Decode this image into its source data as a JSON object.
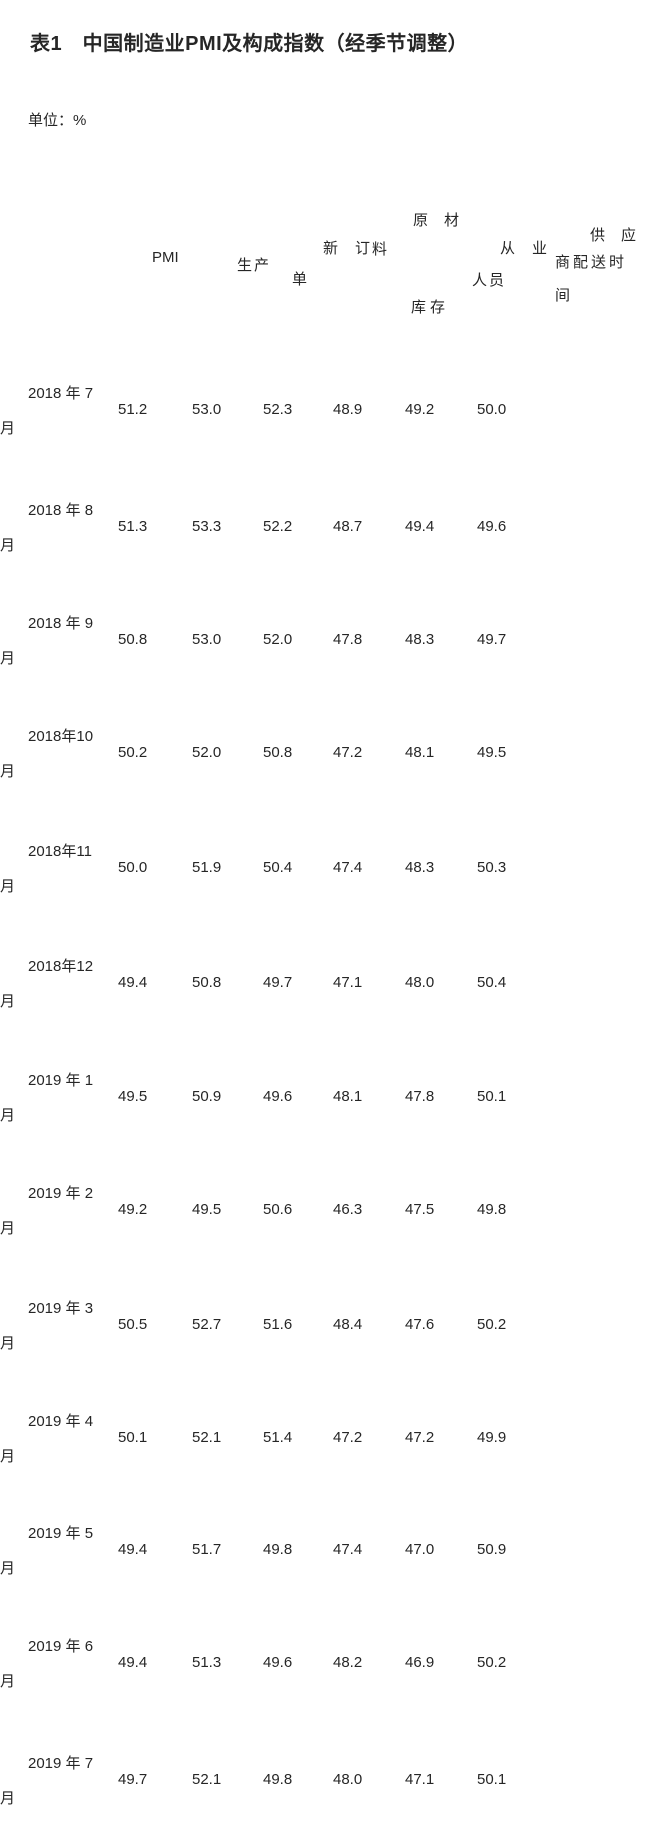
{
  "document": {
    "title": "表1　中国制造业PMI及构成指数（经季节调整）",
    "unit_note": "单位：%"
  },
  "table": {
    "column_names": [
      "PMI",
      "生产",
      "新订单",
      "原材料库存",
      "从业人员",
      "供应商配送时间"
    ],
    "header_runs": [
      "PMI",
      "生产",
      "新订",
      "单",
      "料",
      "原材",
      "库存",
      "从业",
      "人员",
      "供应",
      "商配送时",
      "间"
    ],
    "rows": [
      {
        "month": "2018年7月",
        "label_line1": "2018 年 7",
        "label_line2": "月",
        "values": [
          "51.2",
          "53.0",
          "52.3",
          "48.9",
          "49.2",
          "50.0"
        ]
      },
      {
        "month": "2018年8月",
        "label_line1": "2018 年 8",
        "label_line2": "月",
        "values": [
          "51.3",
          "53.3",
          "52.2",
          "48.7",
          "49.4",
          "49.6"
        ]
      },
      {
        "month": "2018年9月",
        "label_line1": "2018 年 9",
        "label_line2": "月",
        "values": [
          "50.8",
          "53.0",
          "52.0",
          "47.8",
          "48.3",
          "49.7"
        ]
      },
      {
        "month": "2018年10月",
        "label_line1": "2018年10",
        "label_line2": "月",
        "values": [
          "50.2",
          "52.0",
          "50.8",
          "47.2",
          "48.1",
          "49.5"
        ]
      },
      {
        "month": "2018年11月",
        "label_line1": "2018年11",
        "label_line2": "月",
        "values": [
          "50.0",
          "51.9",
          "50.4",
          "47.4",
          "48.3",
          "50.3"
        ]
      },
      {
        "month": "2018年12月",
        "label_line1": "2018年12",
        "label_line2": "月",
        "values": [
          "49.4",
          "50.8",
          "49.7",
          "47.1",
          "48.0",
          "50.4"
        ]
      },
      {
        "month": "2019年1月",
        "label_line1": "2019 年 1",
        "label_line2": "月",
        "values": [
          "49.5",
          "50.9",
          "49.6",
          "48.1",
          "47.8",
          "50.1"
        ]
      },
      {
        "month": "2019年2月",
        "label_line1": "2019 年 2",
        "label_line2": "月",
        "values": [
          "49.2",
          "49.5",
          "50.6",
          "46.3",
          "47.5",
          "49.8"
        ]
      },
      {
        "month": "2019年3月",
        "label_line1": "2019 年 3",
        "label_line2": "月",
        "values": [
          "50.5",
          "52.7",
          "51.6",
          "48.4",
          "47.6",
          "50.2"
        ]
      },
      {
        "month": "2019年4月",
        "label_line1": "2019 年 4",
        "label_line2": "月",
        "values": [
          "50.1",
          "52.1",
          "51.4",
          "47.2",
          "47.2",
          "49.9"
        ]
      },
      {
        "month": "2019年5月",
        "label_line1": "2019 年 5",
        "label_line2": "月",
        "values": [
          "49.4",
          "51.7",
          "49.8",
          "47.4",
          "47.0",
          "50.9"
        ]
      },
      {
        "month": "2019年6月",
        "label_line1": "2019 年 6",
        "label_line2": "月",
        "values": [
          "49.4",
          "51.3",
          "49.6",
          "48.2",
          "46.9",
          "50.2"
        ]
      },
      {
        "month": "2019年7月",
        "label_line1": "2019 年 7",
        "label_line2": "月",
        "values": [
          "49.7",
          "52.1",
          "49.8",
          "48.0",
          "47.1",
          "50.1"
        ]
      }
    ]
  },
  "colors": {
    "text": "#262626",
    "background": "#ffffff"
  }
}
